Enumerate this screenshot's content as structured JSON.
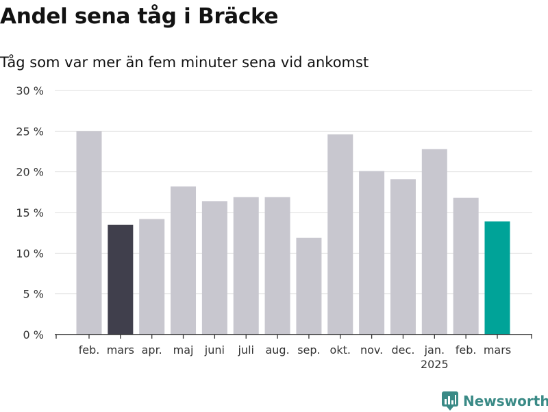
{
  "header": {
    "title": "Andel sena tåg i Bräcke",
    "subtitle": "Tåg som var mer än fem minuter sena vid ankomst"
  },
  "brand": {
    "name": "Newsworthy",
    "color": "#3a8a86"
  },
  "colors": {
    "default_bar": "#c8c7cf",
    "previous_year_bar": "#403f4c",
    "latest_bar": "#00a398",
    "grid": "#dddddd",
    "axis": "#333333"
  },
  "chart_data": {
    "type": "bar",
    "categories": [
      "feb.",
      "mars",
      "apr.",
      "maj",
      "juni",
      "juli",
      "aug.",
      "sep.",
      "okt.",
      "nov.",
      "dec.",
      "jan.",
      "feb.",
      "mars"
    ],
    "category_sublabels": [
      "",
      "",
      "",
      "",
      "",
      "",
      "",
      "",
      "",
      "",
      "",
      "2025",
      "",
      ""
    ],
    "values": [
      25.0,
      13.5,
      14.2,
      18.2,
      16.4,
      16.9,
      16.9,
      11.9,
      24.6,
      20.1,
      19.1,
      22.8,
      16.8,
      13.9
    ],
    "highlight": {
      "1": "previous_year_bar",
      "13": "latest_bar"
    },
    "yticks": [
      "0 %",
      "5 %",
      "10 %",
      "15 %",
      "20 %",
      "25 %",
      "30 %"
    ],
    "ylim": [
      0,
      30
    ],
    "grid": true,
    "legend": "none"
  }
}
